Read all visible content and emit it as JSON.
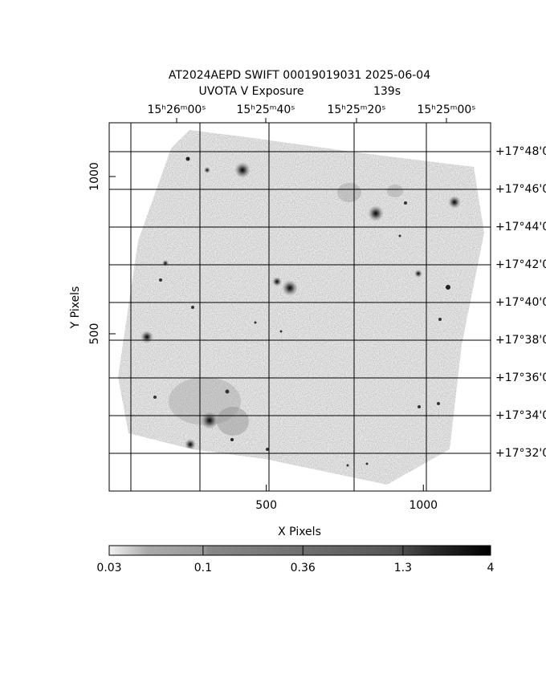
{
  "chart_data": {
    "type": "image",
    "title": "AT2024AEPD SWIFT 00019019031 2025-06-04",
    "subtitle": "UVOTA V Exposure",
    "exposure": "139s",
    "xlabel": "X Pixels",
    "ylabel": "Y Pixels",
    "xlim": [
      0,
      1214
    ],
    "xticks": [
      500,
      1000
    ],
    "ylim": [
      0,
      1171
    ],
    "yticks": [
      500,
      1000
    ],
    "ra_labels": [
      "15ʰ26ᵐ00ˢ",
      "15ʰ25ᵐ40ˢ",
      "15ʰ25ᵐ20ˢ",
      "15ʰ25ᵐ00ˢ"
    ],
    "dec_labels": [
      "+17°48'0",
      "+17°46'0",
      "+17°44'0",
      "+17°42'0",
      "+17°40'0",
      "+17°38'0",
      "+17°36'0",
      "+17°34'0",
      "+17°32'0"
    ],
    "colorbar": {
      "scale": "log",
      "lim": [
        0.03,
        4
      ],
      "ticks": [
        0.03,
        0.1,
        0.36,
        1.3,
        4
      ]
    }
  }
}
